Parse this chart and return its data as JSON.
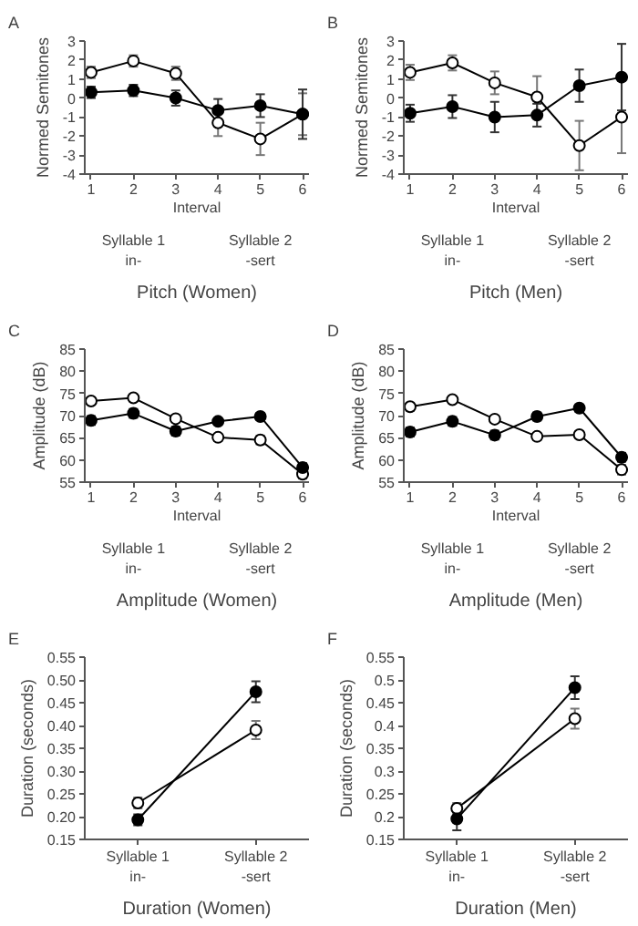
{
  "chart_data": [
    {
      "type": "line",
      "title": "Pitch (Women)",
      "ylabel": "Normed Semitones",
      "xlabel": "Interval",
      "x": [
        1,
        2,
        3,
        4,
        5,
        6
      ],
      "xlim": [
        0.85,
        6.15
      ],
      "xticks": [
        1,
        2,
        3,
        4,
        5,
        6
      ],
      "ylim": [
        -4,
        3
      ],
      "yticks": [
        -4,
        -3,
        -2,
        -1,
        0,
        1,
        2,
        3
      ],
      "marker": "circle",
      "annotations": [
        "A",
        "Syllable 1\nin-",
        "Syllable 2\n-sert"
      ],
      "series": [
        {
          "color": "#ffffff",
          "values": [
            1.35,
            1.95,
            1.3,
            -1.3,
            -2.15,
            -0.85
          ],
          "errors": [
            0.3,
            0.3,
            0.35,
            0.7,
            0.85,
            1.1
          ]
        },
        {
          "color": "#000000",
          "values": [
            0.3,
            0.4,
            0,
            -0.65,
            -0.4,
            -0.85
          ],
          "errors": [
            0.3,
            0.3,
            0.4,
            0.6,
            0.6,
            1.3
          ]
        }
      ]
    },
    {
      "type": "line",
      "title": "Pitch (Men)",
      "ylabel": "Normed Semitones",
      "xlabel": "Interval",
      "x": [
        1,
        2,
        3,
        4,
        5,
        6
      ],
      "xlim": [
        0.85,
        6.15
      ],
      "xticks": [
        1,
        2,
        3,
        4,
        5,
        6
      ],
      "ylim": [
        -4,
        3
      ],
      "yticks": [
        -4,
        -3,
        -2,
        -1,
        0,
        1,
        2,
        3
      ],
      "marker": "circle",
      "annotations": [
        "B",
        "Syllable 1\nin-",
        "Syllable 2\n-sert"
      ],
      "series": [
        {
          "color": "#ffffff",
          "values": [
            1.35,
            1.85,
            0.8,
            0.05,
            -2.5,
            -1.0
          ],
          "errors": [
            0.4,
            0.4,
            0.6,
            1.1,
            1.3,
            1.9
          ]
        },
        {
          "color": "#000000",
          "values": [
            -0.8,
            -0.45,
            -1.0,
            -0.9,
            0.65,
            1.1
          ],
          "errors": [
            0.45,
            0.6,
            0.8,
            0.6,
            0.85,
            1.75
          ]
        }
      ]
    },
    {
      "type": "line",
      "title": "Amplitude (Women)",
      "ylabel": "Amplitude (dB)",
      "xlabel": "Interval",
      "x": [
        1,
        2,
        3,
        4,
        5,
        6
      ],
      "xlim": [
        0.85,
        6.15
      ],
      "xticks": [
        1,
        2,
        3,
        4,
        5,
        6
      ],
      "ylim": [
        55,
        85
      ],
      "yticks": [
        55,
        60,
        65,
        70,
        75,
        80,
        85
      ],
      "marker": "circle",
      "annotations": [
        "C",
        "Syllable 1\nin-",
        "Syllable 2\n-sert"
      ],
      "series": [
        {
          "color": "#ffffff",
          "values": [
            73.3,
            74,
            69.3,
            65.1,
            64.5,
            56.8
          ],
          "errors": [
            0.7,
            0.7,
            0.8,
            0.8,
            1,
            1
          ]
        },
        {
          "color": "#000000",
          "values": [
            68.9,
            70.5,
            66.5,
            68.7,
            69.8,
            58.3
          ],
          "errors": [
            1,
            1,
            1,
            0.7,
            0.8,
            1
          ]
        }
      ]
    },
    {
      "type": "line",
      "title": "Amplitude (Men)",
      "ylabel": "Amplitude (dB)",
      "xlabel": "Interval",
      "x": [
        1,
        2,
        3,
        4,
        5,
        6
      ],
      "xlim": [
        0.85,
        6.15
      ],
      "xticks": [
        1,
        2,
        3,
        4,
        5,
        6
      ],
      "ylim": [
        55,
        85
      ],
      "yticks": [
        55,
        60,
        65,
        70,
        75,
        80,
        85
      ],
      "marker": "circle",
      "annotations": [
        "D",
        "Syllable 1\nin-",
        "Syllable 2\n-sert"
      ],
      "series": [
        {
          "color": "#ffffff",
          "values": [
            72,
            73.6,
            69.2,
            65.3,
            65.7,
            57.8
          ],
          "errors": [
            0.9,
            0.7,
            0.8,
            0.8,
            0.8,
            1.1
          ]
        },
        {
          "color": "#000000",
          "values": [
            66.3,
            68.7,
            65.6,
            69.8,
            71.7,
            60.6
          ],
          "errors": [
            1,
            1,
            1,
            0.9,
            0.8,
            1
          ]
        }
      ]
    },
    {
      "type": "line",
      "title": "Duration (Women)",
      "ylabel": "Duration (seconds)",
      "categories": [
        "Syllable 1\nin-",
        "Syllable 2\n-sert"
      ],
      "ylim": [
        0.15,
        0.55
      ],
      "yticks": [
        0.15,
        {
          "value": 0.2,
          "label": "0.20"
        },
        0.25,
        {
          "value": 0.3,
          "label": "0.30"
        },
        0.35,
        {
          "value": 0.4,
          "label": "0.40"
        },
        0.45,
        {
          "value": 0.5,
          "label": "0.50"
        },
        0.55
      ],
      "marker": "circle",
      "annotations": [
        "E"
      ],
      "series": [
        {
          "color": "#ffffff",
          "values": [
            0.23,
            0.39
          ],
          "errors": [
            0.012,
            0.02
          ]
        },
        {
          "color": "#000000",
          "values": [
            0.193,
            0.474
          ],
          "errors": [
            0.012,
            0.023
          ]
        }
      ]
    },
    {
      "type": "line",
      "title": "Duration (Men)",
      "ylabel": "Duration (seconds)",
      "categories": [
        "Syllable 1\nin-",
        "Syllable 2\n-sert"
      ],
      "ylim": [
        0.15,
        0.55
      ],
      "yticks": [
        0.15,
        0.2,
        0.25,
        0.3,
        0.35,
        0.4,
        0.45,
        0.5,
        0.55
      ],
      "marker": "circle",
      "annotations": [
        "F"
      ],
      "series": [
        {
          "color": "#ffffff",
          "values": [
            0.218,
            0.415
          ],
          "errors": [
            0.012,
            0.022
          ]
        },
        {
          "color": "#000000",
          "values": [
            0.195,
            0.483
          ],
          "errors": [
            0.025,
            0.025
          ]
        }
      ]
    }
  ]
}
